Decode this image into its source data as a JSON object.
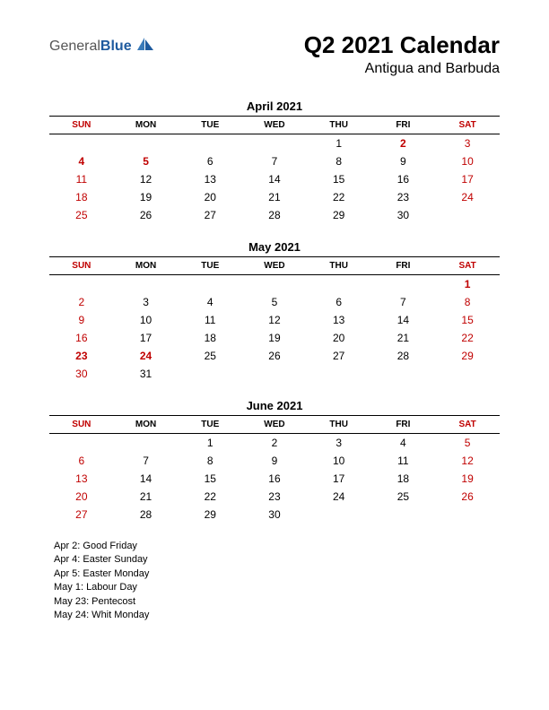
{
  "logo": {
    "text1": "General",
    "text2": "Blue"
  },
  "title": "Q2 2021 Calendar",
  "subtitle": "Antigua and Barbuda",
  "day_headers": [
    "SUN",
    "MON",
    "TUE",
    "WED",
    "THU",
    "FRI",
    "SAT"
  ],
  "colors": {
    "weekend": "#c00000",
    "weekday": "#000000",
    "logo_blue": "#1e5a9e"
  },
  "months": [
    {
      "name": "April 2021",
      "weeks": [
        [
          null,
          null,
          null,
          null,
          {
            "d": 1
          },
          {
            "d": 2,
            "h": true
          },
          {
            "d": 3
          }
        ],
        [
          {
            "d": 4,
            "h": true
          },
          {
            "d": 5,
            "h": true
          },
          {
            "d": 6
          },
          {
            "d": 7
          },
          {
            "d": 8
          },
          {
            "d": 9
          },
          {
            "d": 10
          }
        ],
        [
          {
            "d": 11
          },
          {
            "d": 12
          },
          {
            "d": 13
          },
          {
            "d": 14
          },
          {
            "d": 15
          },
          {
            "d": 16
          },
          {
            "d": 17
          }
        ],
        [
          {
            "d": 18
          },
          {
            "d": 19
          },
          {
            "d": 20
          },
          {
            "d": 21
          },
          {
            "d": 22
          },
          {
            "d": 23
          },
          {
            "d": 24
          }
        ],
        [
          {
            "d": 25
          },
          {
            "d": 26
          },
          {
            "d": 27
          },
          {
            "d": 28
          },
          {
            "d": 29
          },
          {
            "d": 30
          },
          null
        ]
      ]
    },
    {
      "name": "May 2021",
      "weeks": [
        [
          null,
          null,
          null,
          null,
          null,
          null,
          {
            "d": 1,
            "h": true
          }
        ],
        [
          {
            "d": 2
          },
          {
            "d": 3
          },
          {
            "d": 4
          },
          {
            "d": 5
          },
          {
            "d": 6
          },
          {
            "d": 7
          },
          {
            "d": 8
          }
        ],
        [
          {
            "d": 9
          },
          {
            "d": 10
          },
          {
            "d": 11
          },
          {
            "d": 12
          },
          {
            "d": 13
          },
          {
            "d": 14
          },
          {
            "d": 15
          }
        ],
        [
          {
            "d": 16
          },
          {
            "d": 17
          },
          {
            "d": 18
          },
          {
            "d": 19
          },
          {
            "d": 20
          },
          {
            "d": 21
          },
          {
            "d": 22
          }
        ],
        [
          {
            "d": 23,
            "h": true
          },
          {
            "d": 24,
            "h": true
          },
          {
            "d": 25
          },
          {
            "d": 26
          },
          {
            "d": 27
          },
          {
            "d": 28
          },
          {
            "d": 29
          }
        ],
        [
          {
            "d": 30
          },
          {
            "d": 31
          },
          null,
          null,
          null,
          null,
          null
        ]
      ]
    },
    {
      "name": "June 2021",
      "weeks": [
        [
          null,
          null,
          {
            "d": 1
          },
          {
            "d": 2
          },
          {
            "d": 3
          },
          {
            "d": 4
          },
          {
            "d": 5
          }
        ],
        [
          {
            "d": 6
          },
          {
            "d": 7
          },
          {
            "d": 8
          },
          {
            "d": 9
          },
          {
            "d": 10
          },
          {
            "d": 11
          },
          {
            "d": 12
          }
        ],
        [
          {
            "d": 13
          },
          {
            "d": 14
          },
          {
            "d": 15
          },
          {
            "d": 16
          },
          {
            "d": 17
          },
          {
            "d": 18
          },
          {
            "d": 19
          }
        ],
        [
          {
            "d": 20
          },
          {
            "d": 21
          },
          {
            "d": 22
          },
          {
            "d": 23
          },
          {
            "d": 24
          },
          {
            "d": 25
          },
          {
            "d": 26
          }
        ],
        [
          {
            "d": 27
          },
          {
            "d": 28
          },
          {
            "d": 29
          },
          {
            "d": 30
          },
          null,
          null,
          null
        ]
      ]
    }
  ],
  "holidays": [
    "Apr 2: Good Friday",
    "Apr 4: Easter Sunday",
    "Apr 5: Easter Monday",
    "May 1: Labour Day",
    "May 23: Pentecost",
    "May 24: Whit Monday"
  ]
}
